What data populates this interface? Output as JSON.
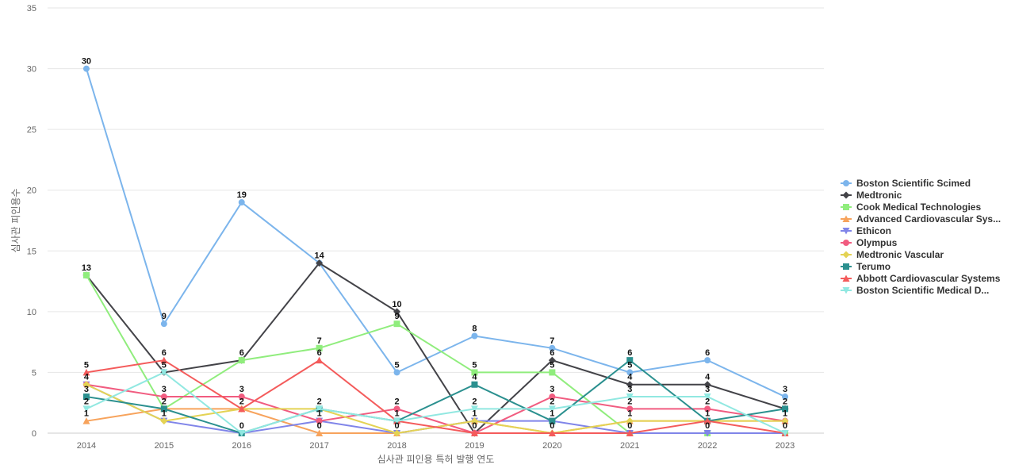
{
  "chart_data": {
    "type": "line",
    "xlabel": "심사관 피인용 특허 발행 연도",
    "ylabel": "심사관 피인용수",
    "ylim": [
      0,
      35
    ],
    "yticks": [
      "0",
      "5",
      "10",
      "15",
      "20",
      "25",
      "30",
      "35"
    ],
    "categories": [
      "2014",
      "2015",
      "2016",
      "2017",
      "2018",
      "2019",
      "2020",
      "2021",
      "2022",
      "2023"
    ],
    "grid": true,
    "legend_position": "right",
    "series": [
      {
        "name": "Boston Scientific Scimed",
        "color": "#7cb5ec",
        "marker": "circle",
        "values": [
          30,
          9,
          19,
          14,
          5,
          8,
          7,
          5,
          6,
          3
        ]
      },
      {
        "name": "Medtronic",
        "color": "#434348",
        "marker": "diamond",
        "values": [
          13,
          5,
          6,
          14,
          10,
          0,
          6,
          4,
          4,
          2
        ]
      },
      {
        "name": "Cook Medical Technologies",
        "color": "#90ed7d",
        "marker": "square",
        "values": [
          13,
          2,
          6,
          7,
          9,
          5,
          5,
          0,
          0,
          0
        ]
      },
      {
        "name": "Advanced Cardiovascular Sys...",
        "color": "#f7a35c",
        "marker": "triangle",
        "values": [
          1,
          2,
          2,
          0,
          0,
          1,
          0,
          1,
          1,
          1
        ]
      },
      {
        "name": "Ethicon",
        "color": "#8085e9",
        "marker": "triangle-down",
        "values": [
          4,
          1,
          0,
          1,
          0,
          1,
          1,
          0,
          0,
          0
        ]
      },
      {
        "name": "Olympus",
        "color": "#f15c80",
        "marker": "circle",
        "values": [
          4,
          3,
          3,
          1,
          2,
          0,
          3,
          2,
          2,
          1
        ]
      },
      {
        "name": "Medtronic Vascular",
        "color": "#e4d354",
        "marker": "diamond",
        "values": [
          4,
          1,
          2,
          2,
          0,
          1,
          0,
          1,
          1,
          1
        ]
      },
      {
        "name": "Terumo",
        "color": "#2b908f",
        "marker": "square",
        "values": [
          3,
          2,
          0,
          2,
          1,
          4,
          1,
          6,
          1,
          2
        ]
      },
      {
        "name": "Abbott Cardiovascular Systems",
        "color": "#f45b5b",
        "marker": "triangle",
        "values": [
          5,
          6,
          2,
          6,
          1,
          0,
          0,
          0,
          1,
          0
        ]
      },
      {
        "name": "Boston Scientific Medical D...",
        "color": "#91e8e1",
        "marker": "triangle-down",
        "values": [
          2,
          5,
          0,
          2,
          1,
          2,
          2,
          3,
          3,
          0
        ]
      }
    ],
    "data_labels": [
      {
        "text": "30",
        "x": "2014",
        "y": 30
      },
      {
        "text": "13",
        "x": "2014",
        "y": 13
      },
      {
        "text": "5",
        "x": "2014",
        "y": 5
      },
      {
        "text": "4",
        "x": "2014",
        "y": 4
      },
      {
        "text": "3",
        "x": "2014",
        "y": 3
      },
      {
        "text": "2",
        "x": "2014",
        "y": 2
      },
      {
        "text": "1",
        "x": "2014",
        "y": 1
      },
      {
        "text": "9",
        "x": "2015",
        "y": 9
      },
      {
        "text": "6",
        "x": "2015",
        "y": 6
      },
      {
        "text": "5",
        "x": "2015",
        "y": 5
      },
      {
        "text": "3",
        "x": "2015",
        "y": 3
      },
      {
        "text": "2",
        "x": "2015",
        "y": 2
      },
      {
        "text": "1",
        "x": "2015",
        "y": 1
      },
      {
        "text": "19",
        "x": "2016",
        "y": 19
      },
      {
        "text": "6",
        "x": "2016",
        "y": 6
      },
      {
        "text": "3",
        "x": "2016",
        "y": 3
      },
      {
        "text": "2",
        "x": "2016",
        "y": 2
      },
      {
        "text": "0",
        "x": "2016",
        "y": 0
      },
      {
        "text": "14",
        "x": "2017",
        "y": 14
      },
      {
        "text": "7",
        "x": "2017",
        "y": 7
      },
      {
        "text": "6",
        "x": "2017",
        "y": 6
      },
      {
        "text": "2",
        "x": "2017",
        "y": 2
      },
      {
        "text": "1",
        "x": "2017",
        "y": 1
      },
      {
        "text": "0",
        "x": "2017",
        "y": 0
      },
      {
        "text": "10",
        "x": "2018",
        "y": 10
      },
      {
        "text": "9",
        "x": "2018",
        "y": 9
      },
      {
        "text": "5",
        "x": "2018",
        "y": 5
      },
      {
        "text": "2",
        "x": "2018",
        "y": 2
      },
      {
        "text": "1",
        "x": "2018",
        "y": 1
      },
      {
        "text": "0",
        "x": "2018",
        "y": 0
      },
      {
        "text": "8",
        "x": "2019",
        "y": 8
      },
      {
        "text": "5",
        "x": "2019",
        "y": 5
      },
      {
        "text": "4",
        "x": "2019",
        "y": 4
      },
      {
        "text": "2",
        "x": "2019",
        "y": 2
      },
      {
        "text": "1",
        "x": "2019",
        "y": 1
      },
      {
        "text": "0",
        "x": "2019",
        "y": 0
      },
      {
        "text": "7",
        "x": "2020",
        "y": 7
      },
      {
        "text": "6",
        "x": "2020",
        "y": 6
      },
      {
        "text": "5",
        "x": "2020",
        "y": 5
      },
      {
        "text": "3",
        "x": "2020",
        "y": 3
      },
      {
        "text": "2",
        "x": "2020",
        "y": 2
      },
      {
        "text": "1",
        "x": "2020",
        "y": 1
      },
      {
        "text": "0",
        "x": "2020",
        "y": 0
      },
      {
        "text": "6",
        "x": "2021",
        "y": 6
      },
      {
        "text": "5",
        "x": "2021",
        "y": 5
      },
      {
        "text": "4",
        "x": "2021",
        "y": 4
      },
      {
        "text": "3",
        "x": "2021",
        "y": 3
      },
      {
        "text": "2",
        "x": "2021",
        "y": 2
      },
      {
        "text": "1",
        "x": "2021",
        "y": 1
      },
      {
        "text": "0",
        "x": "2021",
        "y": 0
      },
      {
        "text": "6",
        "x": "2022",
        "y": 6
      },
      {
        "text": "4",
        "x": "2022",
        "y": 4
      },
      {
        "text": "3",
        "x": "2022",
        "y": 3
      },
      {
        "text": "2",
        "x": "2022",
        "y": 2
      },
      {
        "text": "1",
        "x": "2022",
        "y": 1
      },
      {
        "text": "0",
        "x": "2022",
        "y": 0
      },
      {
        "text": "3",
        "x": "2023",
        "y": 3
      },
      {
        "text": "2",
        "x": "2023",
        "y": 2
      },
      {
        "text": "1",
        "x": "2023",
        "y": 1
      },
      {
        "text": "0",
        "x": "2023",
        "y": 0
      }
    ]
  }
}
